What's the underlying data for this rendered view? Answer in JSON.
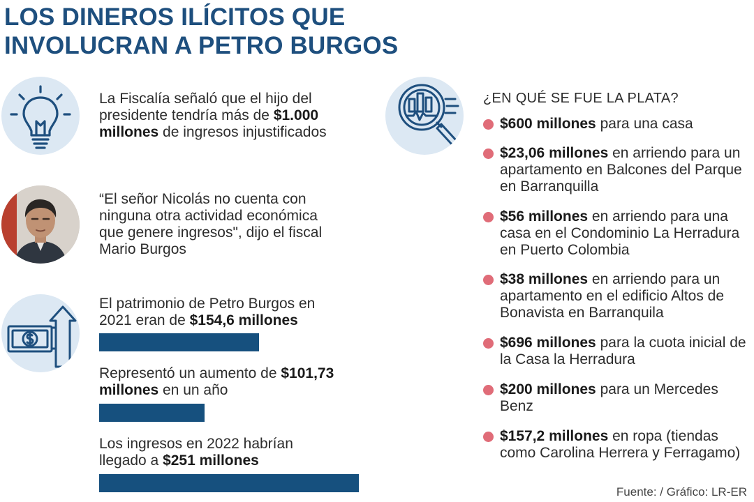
{
  "title": {
    "line1": "LOS DINEROS ILÍCITOS QUE",
    "line2": "INVOLUCRAN A PETRO BURGOS"
  },
  "left_blocks": {
    "fiscalia": {
      "pre": "La Fiscalía señaló que el hijo del presidente tendría más de ",
      "bold": "$1.000 millones",
      "post": " de ingresos injustificados"
    },
    "quote": {
      "text": "“El señor Nicolás no cuenta con ninguna otra actividad económica que genere ingresos\", dijo el fiscal Mario Burgos"
    }
  },
  "chart_data": {
    "type": "bar",
    "orientation": "horizontal",
    "unit": "millones",
    "items": [
      {
        "pre": "El patrimonio de Petro Burgos en 2021 eran de ",
        "bold": "$154,6 millones",
        "post": "",
        "value": 154.6
      },
      {
        "pre": "Representó un aumento de ",
        "bold": "$101,73 millones",
        "post": " en un año",
        "value": 101.73
      },
      {
        "pre": "Los ingresos en 2022 habrían llegado a ",
        "bold": "$251 millones",
        "post": "",
        "value": 251
      }
    ],
    "bar_color": "#16507e"
  },
  "spending": {
    "heading": "¿EN QUÉ SE FUE LA PLATA?",
    "items": [
      {
        "bold": "$600 millones",
        "rest": " para una casa"
      },
      {
        "bold": "$23,06 millones",
        "rest": " en arriendo para un apartamento en Balcones del Parque en Barranquilla"
      },
      {
        "bold": "$56 millones",
        "rest": " en arriendo para una casa en el Condominio La Herradura en Puerto Colombia"
      },
      {
        "bold": "$38 millones",
        "rest": " en arriendo para un apartamento en el edificio Altos de Bonavista en Barranquila"
      },
      {
        "bold": "$696 millones",
        "rest": " para la cuota inicial de la Casa la Herradura"
      },
      {
        "bold": "$200 millones",
        "rest": " para un Mercedes Benz"
      },
      {
        "bold": "$157,2 millones",
        "rest": " en ropa (tiendas como Carolina Herrera y Ferragamo)"
      }
    ],
    "bullet_color": "#e06c78"
  },
  "source": "Fuente: / Gráfico: LR-ER",
  "icons": {
    "bulb": "lightbulb-icon",
    "photo": "person-photo",
    "money": "money-arrow-icon",
    "analysis": "magnifier-chart-icon"
  },
  "colors": {
    "title": "#1e4f7e",
    "icon_bg": "#dce8f3",
    "icon_stroke": "#1e4f7e"
  }
}
